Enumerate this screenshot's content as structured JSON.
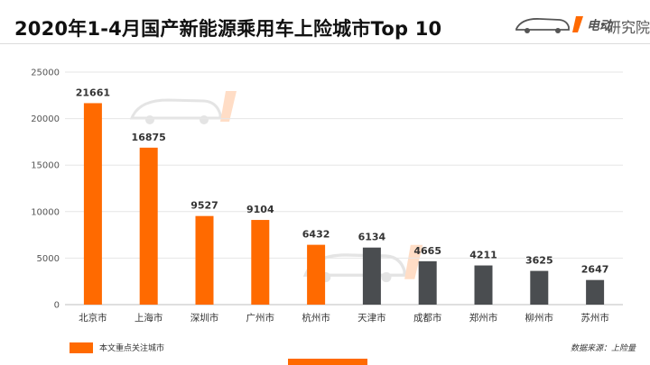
{
  "header": {
    "title": "2020年1-4月国产新能源乘用车上险城市Top 10",
    "brand": "研究院"
  },
  "legend": {
    "label": "本文重点关注城市",
    "color": "#ff6a00"
  },
  "source": "数据来源：上险量",
  "colors": {
    "highlight": "#ff6a00",
    "other": "#4a4d50",
    "grid": "#e6e6e6"
  },
  "icons": {
    "brand_logo": "car-logo-icon",
    "watermark": "watermark-car-logo-icon"
  },
  "chart_data": {
    "type": "bar",
    "categories": [
      "北京市",
      "上海市",
      "深圳市",
      "广州市",
      "杭州市",
      "天津市",
      "成都市",
      "郑州市",
      "柳州市",
      "苏州市"
    ],
    "values": [
      21661,
      16875,
      9527,
      9104,
      6432,
      6134,
      4665,
      4211,
      3625,
      2647
    ],
    "highlighted": [
      true,
      true,
      true,
      true,
      true,
      false,
      false,
      false,
      false,
      false
    ],
    "yticks": [
      0,
      5000,
      10000,
      15000,
      20000,
      25000
    ],
    "ylim": [
      0,
      25000
    ],
    "grid": true,
    "title": "2020年1-4月国产新能源乘用车上险城市Top 10",
    "xlabel": "",
    "ylabel": "",
    "legend_position": "bottom-left"
  }
}
